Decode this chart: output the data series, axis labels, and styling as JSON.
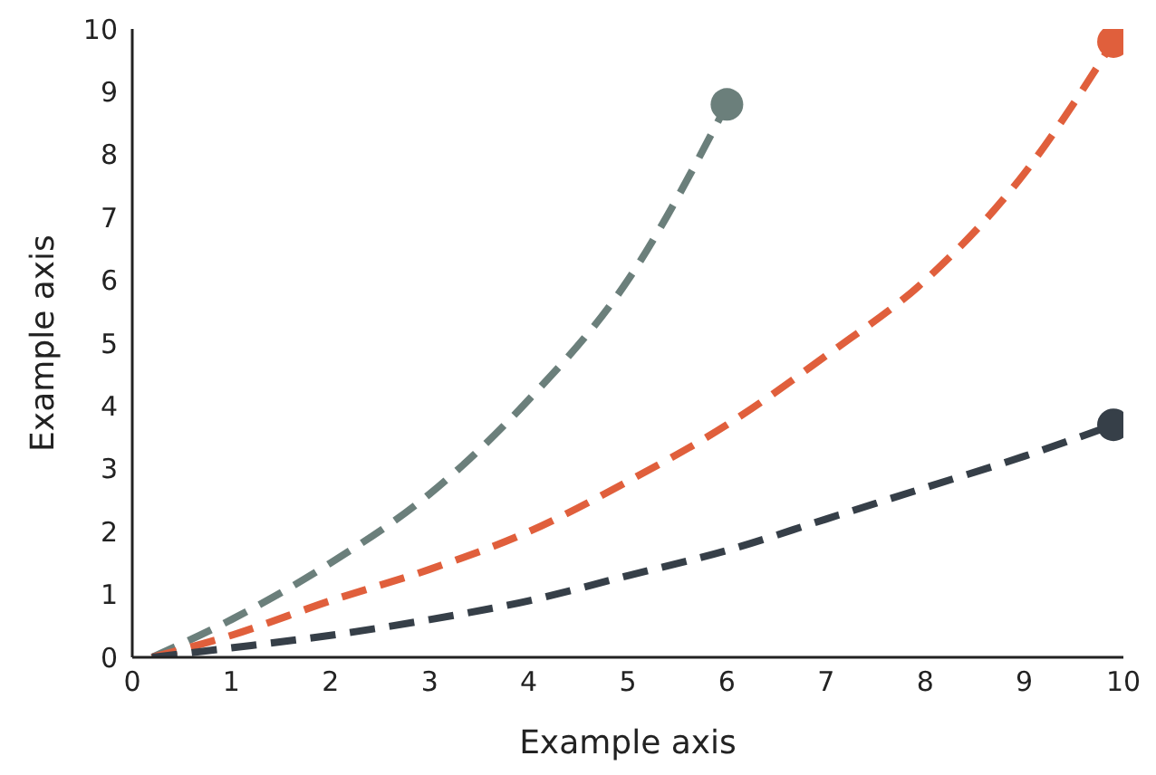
{
  "chart_data": {
    "type": "line",
    "xlabel": "Example axis",
    "ylabel": "Example axis",
    "xlim": [
      0,
      10
    ],
    "ylim": [
      0,
      10
    ],
    "xticks": [
      0,
      1,
      2,
      3,
      4,
      5,
      6,
      7,
      8,
      9,
      10
    ],
    "yticks": [
      0,
      1,
      2,
      3,
      4,
      5,
      6,
      7,
      8,
      9,
      10
    ],
    "grid": false,
    "line_style": "dashed",
    "series": [
      {
        "color": "#6b7f7b",
        "x": [
          0.2,
          1,
          2,
          3,
          4,
          5,
          6
        ],
        "values": [
          0,
          0.6,
          1.5,
          2.6,
          4.1,
          6.0,
          8.8
        ]
      },
      {
        "color": "#e05f3c",
        "x": [
          0.2,
          1,
          2,
          3,
          4,
          5,
          6,
          7,
          8,
          9,
          9.9
        ],
        "values": [
          0,
          0.35,
          0.9,
          1.4,
          2.0,
          2.8,
          3.7,
          4.8,
          6.0,
          7.7,
          9.8
        ]
      },
      {
        "color": "#363f48",
        "x": [
          0.2,
          1,
          2,
          3,
          4,
          5,
          6,
          7,
          8,
          9,
          9.9
        ],
        "values": [
          0,
          0.15,
          0.35,
          0.6,
          0.9,
          1.3,
          1.7,
          2.2,
          2.7,
          3.2,
          3.7
        ]
      },
      {
        "type": "scatter",
        "marker": "circle",
        "color": "#6b7f7b",
        "x": [
          6
        ],
        "values": [
          8.8
        ]
      },
      {
        "type": "scatter",
        "marker": "circle",
        "color": "#e05f3c",
        "x": [
          9.9
        ],
        "values": [
          9.8
        ]
      },
      {
        "type": "scatter",
        "marker": "circle",
        "color": "#363f48",
        "x": [
          9.9
        ],
        "values": [
          3.7
        ]
      }
    ]
  }
}
